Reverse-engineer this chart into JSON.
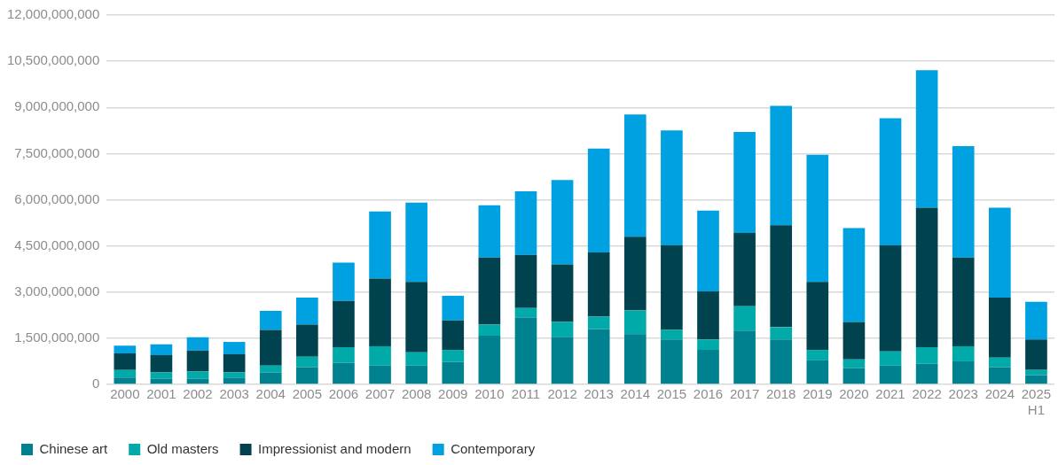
{
  "chart_data": {
    "type": "bar",
    "stacked": true,
    "categories": [
      "2000",
      "2001",
      "2002",
      "2003",
      "2004",
      "2005",
      "2006",
      "2007",
      "2008",
      "2009",
      "2010",
      "2011",
      "2012",
      "2013",
      "2014",
      "2015",
      "2016",
      "2017",
      "2018",
      "2019",
      "2020",
      "2021",
      "2022",
      "2023",
      "2024",
      "2025 H1"
    ],
    "series": [
      {
        "name": "Chinese art",
        "color": "#00818f",
        "values": [
          220000000,
          190000000,
          190000000,
          220000000,
          390000000,
          560000000,
          700000000,
          610000000,
          610000000,
          730000000,
          1580000000,
          2170000000,
          1550000000,
          1800000000,
          1630000000,
          1460000000,
          1120000000,
          1750000000,
          1460000000,
          780000000,
          530000000,
          610000000,
          670000000,
          750000000,
          560000000,
          300000000
        ]
      },
      {
        "name": "Old masters",
        "color": "#00aaa8",
        "values": [
          250000000,
          200000000,
          230000000,
          170000000,
          220000000,
          340000000,
          510000000,
          630000000,
          430000000,
          390000000,
          360000000,
          310000000,
          480000000,
          400000000,
          770000000,
          310000000,
          340000000,
          790000000,
          400000000,
          340000000,
          280000000,
          460000000,
          540000000,
          490000000,
          310000000,
          170000000
        ]
      },
      {
        "name": "Impressionist and modern",
        "color": "#00434f",
        "values": [
          540000000,
          560000000,
          680000000,
          590000000,
          1160000000,
          1040000000,
          1500000000,
          2200000000,
          2290000000,
          960000000,
          2180000000,
          1730000000,
          1870000000,
          2090000000,
          2400000000,
          2750000000,
          1560000000,
          2380000000,
          3310000000,
          2210000000,
          1220000000,
          3450000000,
          4530000000,
          2880000000,
          1950000000,
          990000000
        ]
      },
      {
        "name": "Contemporary",
        "color": "#00a1e0",
        "values": [
          250000000,
          350000000,
          430000000,
          400000000,
          620000000,
          880000000,
          1250000000,
          2180000000,
          2580000000,
          800000000,
          1700000000,
          2060000000,
          2740000000,
          3370000000,
          3970000000,
          3730000000,
          2630000000,
          3280000000,
          3880000000,
          4130000000,
          3050000000,
          4130000000,
          4470000000,
          3620000000,
          2920000000,
          1220000000
        ]
      }
    ],
    "ylim": [
      0,
      12000000000
    ],
    "yticks": [
      0,
      {
        "value": 1500000000,
        "label": "1,500,000,000"
      },
      {
        "value": 3000000000,
        "label": "3,000,000,000"
      },
      {
        "value": 4500000000,
        "label": "4,500,000,000"
      },
      {
        "value": 6000000000,
        "label": "6,000,000,000"
      },
      {
        "value": 7500000000,
        "label": "7,500,000,000"
      },
      {
        "value": 9000000000,
        "label": "9,000,000,000"
      },
      {
        "value": 10500000000,
        "label": "10,500,000,000"
      },
      {
        "value": 12000000000,
        "label": "12,000,000,000"
      }
    ],
    "grid": "y",
    "legend": "bottom left"
  }
}
